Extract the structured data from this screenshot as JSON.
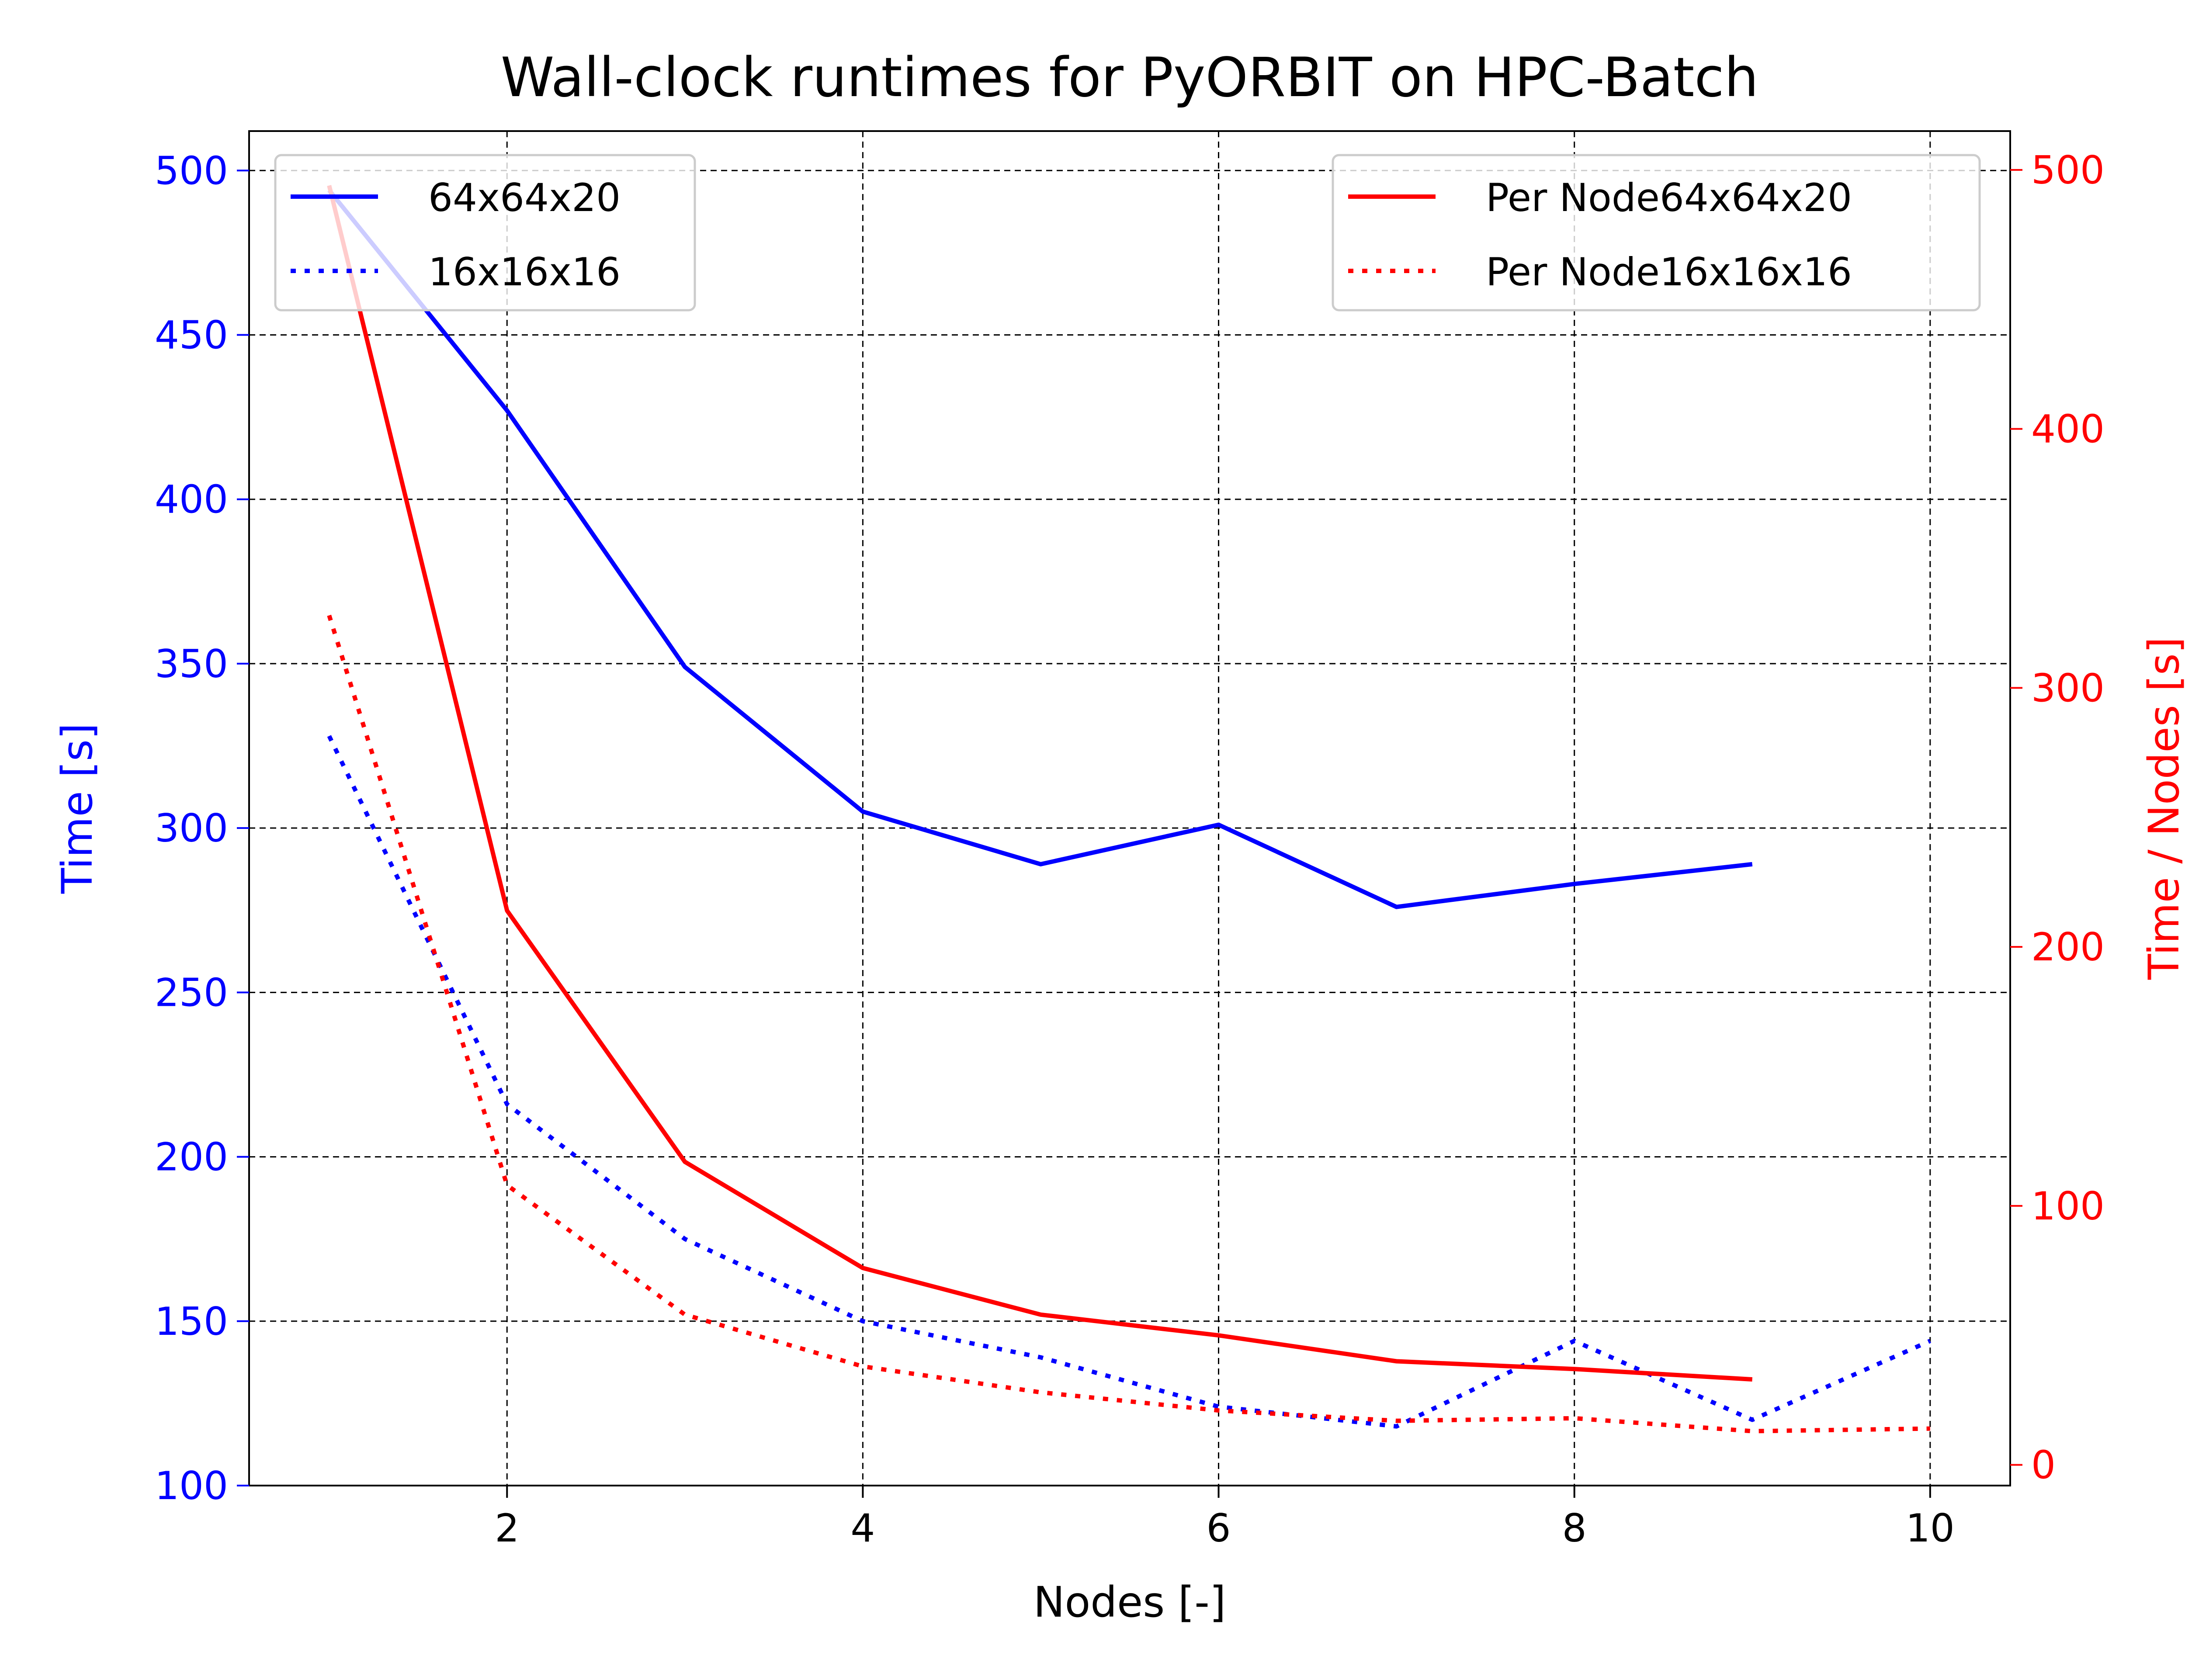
{
  "chart_data": {
    "type": "line",
    "title": "Wall-clock runtimes for PyORBIT on HPC-Batch",
    "xlabel": "Nodes [-]",
    "ylabel_left": "Time [s]",
    "ylabel_right": "Time / Nodes [s]",
    "xlim": [
      0.55,
      10.45
    ],
    "ylim_left": [
      100,
      512
    ],
    "ylim_right": [
      -8,
      515
    ],
    "xticks": [
      2,
      4,
      6,
      8,
      10
    ],
    "yticks_left": [
      100,
      150,
      200,
      250,
      300,
      350,
      400,
      450,
      500
    ],
    "yticks_right": [
      0,
      100,
      200,
      300,
      400,
      500
    ],
    "grid": true,
    "colors": {
      "left_axis": "#0000ff",
      "right_axis": "#ff0000",
      "axis_black": "#000000"
    },
    "legend_left": {
      "placement": "upper-left",
      "entries": [
        "64x64x20",
        "16x16x16"
      ]
    },
    "legend_right": {
      "placement": "upper-right",
      "entries": [
        "Per Node64x64x20",
        "Per Node16x16x16"
      ]
    },
    "series": [
      {
        "name": "64x64x20",
        "axis": "left",
        "color": "#0000ff",
        "style": "solid",
        "x": [
          1,
          2,
          3,
          4,
          5,
          6,
          7,
          8,
          9
        ],
        "values": [
          494,
          427,
          349,
          305,
          289,
          301,
          276,
          283,
          289
        ]
      },
      {
        "name": "16x16x16",
        "axis": "left",
        "color": "#0000ff",
        "style": "dotted",
        "x": [
          1,
          2,
          3,
          4,
          5,
          6,
          7,
          8,
          9,
          10
        ],
        "values": [
          328,
          216,
          175,
          150,
          139,
          124,
          118,
          144,
          120,
          144
        ]
      },
      {
        "name": "Per Node64x64x20",
        "axis": "right",
        "color": "#ff0000",
        "style": "solid",
        "x": [
          1,
          2,
          3,
          4,
          5,
          6,
          7,
          8,
          9
        ],
        "values": [
          494,
          214,
          117,
          76,
          58,
          50,
          40,
          37,
          33
        ]
      },
      {
        "name": "Per Node16x16x16",
        "axis": "right",
        "color": "#ff0000",
        "style": "dotted",
        "x": [
          1,
          2,
          3,
          4,
          5,
          6,
          7,
          8,
          9,
          10
        ],
        "values": [
          328,
          108,
          58,
          38,
          28,
          21,
          17,
          18,
          13,
          14
        ]
      }
    ]
  }
}
